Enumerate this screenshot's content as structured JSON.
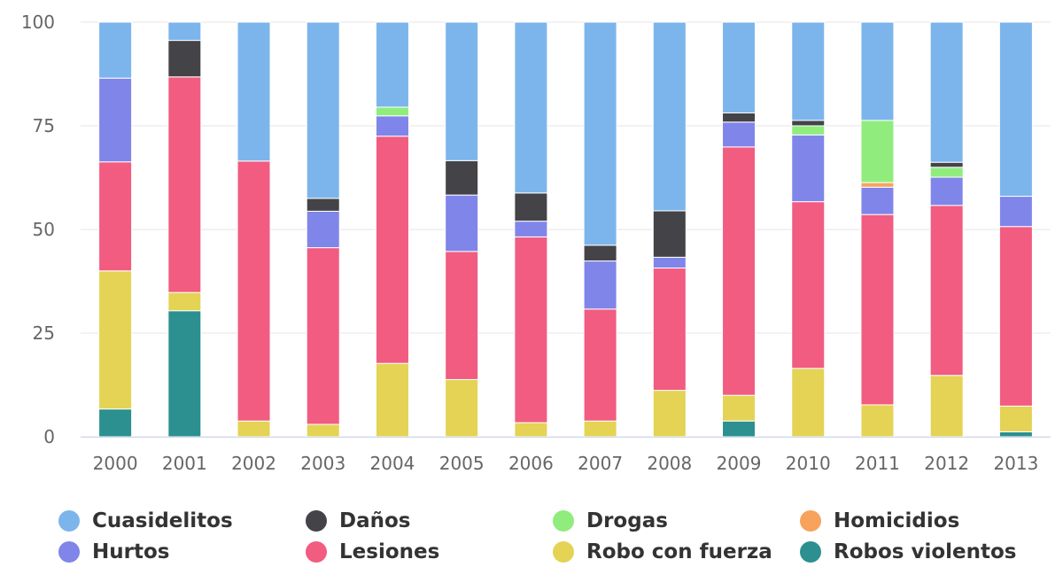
{
  "chart_data": {
    "type": "bar",
    "stacked": true,
    "title": "",
    "xlabel": "",
    "ylabel": "",
    "ylim": [
      0,
      100
    ],
    "yticks": [
      0,
      25,
      50,
      75,
      100
    ],
    "categories": [
      "2000",
      "2001",
      "2002",
      "2003",
      "2004",
      "2005",
      "2006",
      "2007",
      "2008",
      "2009",
      "2010",
      "2011",
      "2012",
      "2013"
    ],
    "legend_position": "bottom",
    "series": [
      {
        "name": "Robos violentos",
        "color": "#2b908f",
        "values": [
          6.7,
          30.4,
          0,
          0,
          0,
          0,
          0,
          0,
          0,
          3.8,
          0,
          0,
          0,
          1.2
        ]
      },
      {
        "name": "Robo con fuerza",
        "color": "#e4d354",
        "values": [
          33.3,
          4.4,
          3.8,
          3.0,
          17.7,
          13.8,
          3.4,
          3.8,
          11.2,
          6.2,
          16.5,
          7.7,
          14.8,
          6.2
        ]
      },
      {
        "name": "Lesiones",
        "color": "#f15c80",
        "values": [
          26.3,
          52.0,
          62.7,
          42.6,
          54.8,
          30.9,
          44.8,
          27.0,
          29.5,
          59.9,
          40.2,
          45.9,
          41.0,
          43.3
        ]
      },
      {
        "name": "Hurtos",
        "color": "#8085e9",
        "values": [
          20.2,
          0,
          0,
          8.8,
          4.9,
          13.6,
          3.8,
          11.6,
          2.6,
          6.0,
          16.1,
          6.6,
          6.8,
          7.3
        ]
      },
      {
        "name": "Homicidios",
        "color": "#f7a35c",
        "values": [
          0,
          0,
          0,
          0,
          0,
          0,
          0,
          0,
          0,
          0,
          0,
          1.1,
          0,
          0
        ]
      },
      {
        "name": "Drogas",
        "color": "#90ed7d",
        "values": [
          0,
          0,
          0,
          0,
          2.1,
          0,
          0,
          0,
          0,
          0,
          2.2,
          15.0,
          2.4,
          0
        ]
      },
      {
        "name": "Daños",
        "color": "#434348",
        "values": [
          0,
          8.8,
          0,
          3.1,
          0,
          8.3,
          6.8,
          3.8,
          11.2,
          2.2,
          1.3,
          0,
          1.2,
          0
        ]
      },
      {
        "name": "Cuasidelitos",
        "color": "#7cb5ec",
        "values": [
          13.5,
          4.4,
          33.5,
          42.5,
          20.5,
          33.4,
          41.2,
          53.8,
          45.5,
          21.9,
          23.7,
          23.7,
          33.8,
          42.0
        ]
      }
    ]
  },
  "legend": {
    "items": [
      {
        "label": "Cuasidelitos",
        "color": "#7cb5ec"
      },
      {
        "label": "Daños",
        "color": "#434348"
      },
      {
        "label": "Drogas",
        "color": "#90ed7d"
      },
      {
        "label": "Homicidios",
        "color": "#f7a35c"
      },
      {
        "label": "Hurtos",
        "color": "#8085e9"
      },
      {
        "label": "Lesiones",
        "color": "#f15c80"
      },
      {
        "label": "Robo con fuerza",
        "color": "#e4d354"
      },
      {
        "label": "Robos violentos",
        "color": "#2b908f"
      }
    ]
  }
}
